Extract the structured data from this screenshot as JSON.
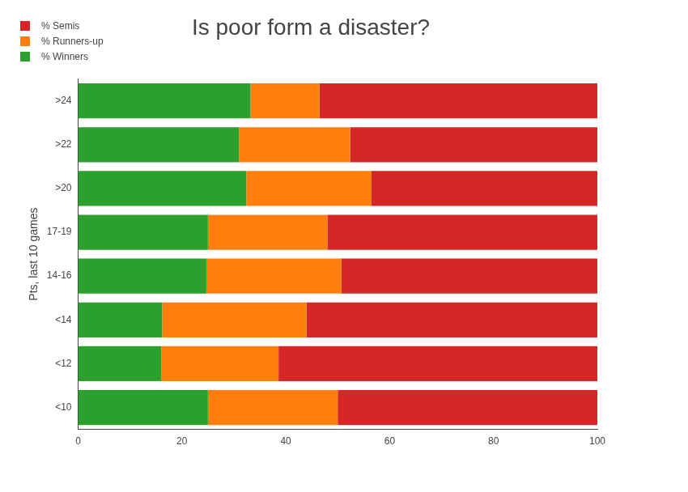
{
  "chart_data": {
    "type": "bar",
    "orientation": "horizontal",
    "stacked": true,
    "title": "Is poor form a disaster?",
    "y_label": "Pts, last 10 games",
    "categories": [
      ">24",
      ">22",
      ">20",
      "17-19",
      "14-16",
      "<14",
      "<12",
      "<10"
    ],
    "series": [
      {
        "name": "% Winners",
        "color": "#2ca02c",
        "values": [
          33.2,
          31.0,
          32.4,
          25.0,
          24.7,
          16.2,
          16.0,
          25.0
        ]
      },
      {
        "name": "% Runners-up",
        "color": "#ff7f0e",
        "values": [
          13.3,
          21.4,
          24.1,
          23.0,
          26.0,
          27.8,
          22.6,
          25.0
        ]
      },
      {
        "name": "% Semis",
        "color": "#d62728",
        "values": [
          53.5,
          47.6,
          43.5,
          52.0,
          49.3,
          56.0,
          61.4,
          50.0
        ]
      }
    ],
    "xlim": [
      0,
      100
    ],
    "xticks": [
      0,
      20,
      40,
      60,
      80,
      100
    ],
    "grid": false,
    "legend": "top left"
  }
}
